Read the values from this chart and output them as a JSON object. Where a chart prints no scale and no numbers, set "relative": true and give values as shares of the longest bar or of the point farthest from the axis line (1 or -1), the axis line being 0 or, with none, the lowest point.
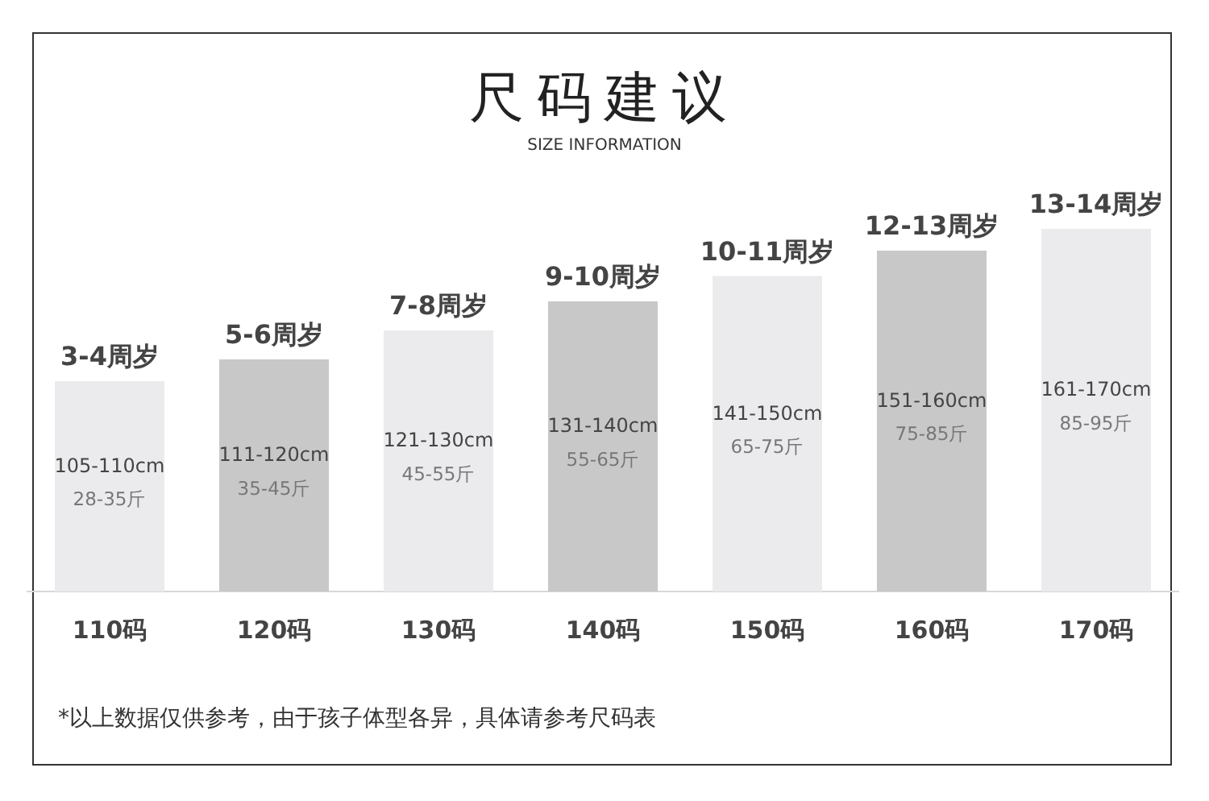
{
  "chart_data": {
    "type": "bar",
    "title": "尺码建议",
    "subtitle": "SIZE INFORMATION",
    "relative": true,
    "legend": false,
    "grid": false,
    "categories": [
      "110码",
      "120码",
      "130码",
      "140码",
      "150码",
      "160码",
      "170码"
    ],
    "values": [
      0.58,
      0.64,
      0.72,
      0.8,
      0.87,
      0.94,
      1
    ],
    "colors": [
      "#ebebed",
      "#c8c8c8",
      "#ebebed",
      "#c8c8c8",
      "#ebebed",
      "#c8c8c8",
      "#ebebed"
    ],
    "annotations": [
      {
        "text": "3-4周岁",
        "x": "110码",
        "y": 0.58
      },
      {
        "text": "5-6周岁",
        "x": "120码",
        "y": 0.64
      },
      {
        "text": "7-8周岁",
        "x": "130码",
        "y": 0.72
      },
      {
        "text": "9-10周岁",
        "x": "140码",
        "y": 0.8
      },
      {
        "text": "10-11周岁",
        "x": "150码",
        "y": 0.87
      },
      {
        "text": "12-13周岁",
        "x": "160码",
        "y": 0.94
      },
      {
        "text": "13-14周岁",
        "x": "170码",
        "y": 1
      },
      "105-110cm",
      "28-35斤",
      "111-120cm",
      "35-45斤",
      "121-130cm",
      "45-55斤",
      "131-140cm",
      "55-65斤",
      "141-150cm",
      "65-75斤",
      "151-160cm",
      "75-85斤",
      "161-170cm",
      "85-95斤",
      "*以上数据仅供参考，由于孩子体型各异，具体请参考尺码表"
    ]
  }
}
